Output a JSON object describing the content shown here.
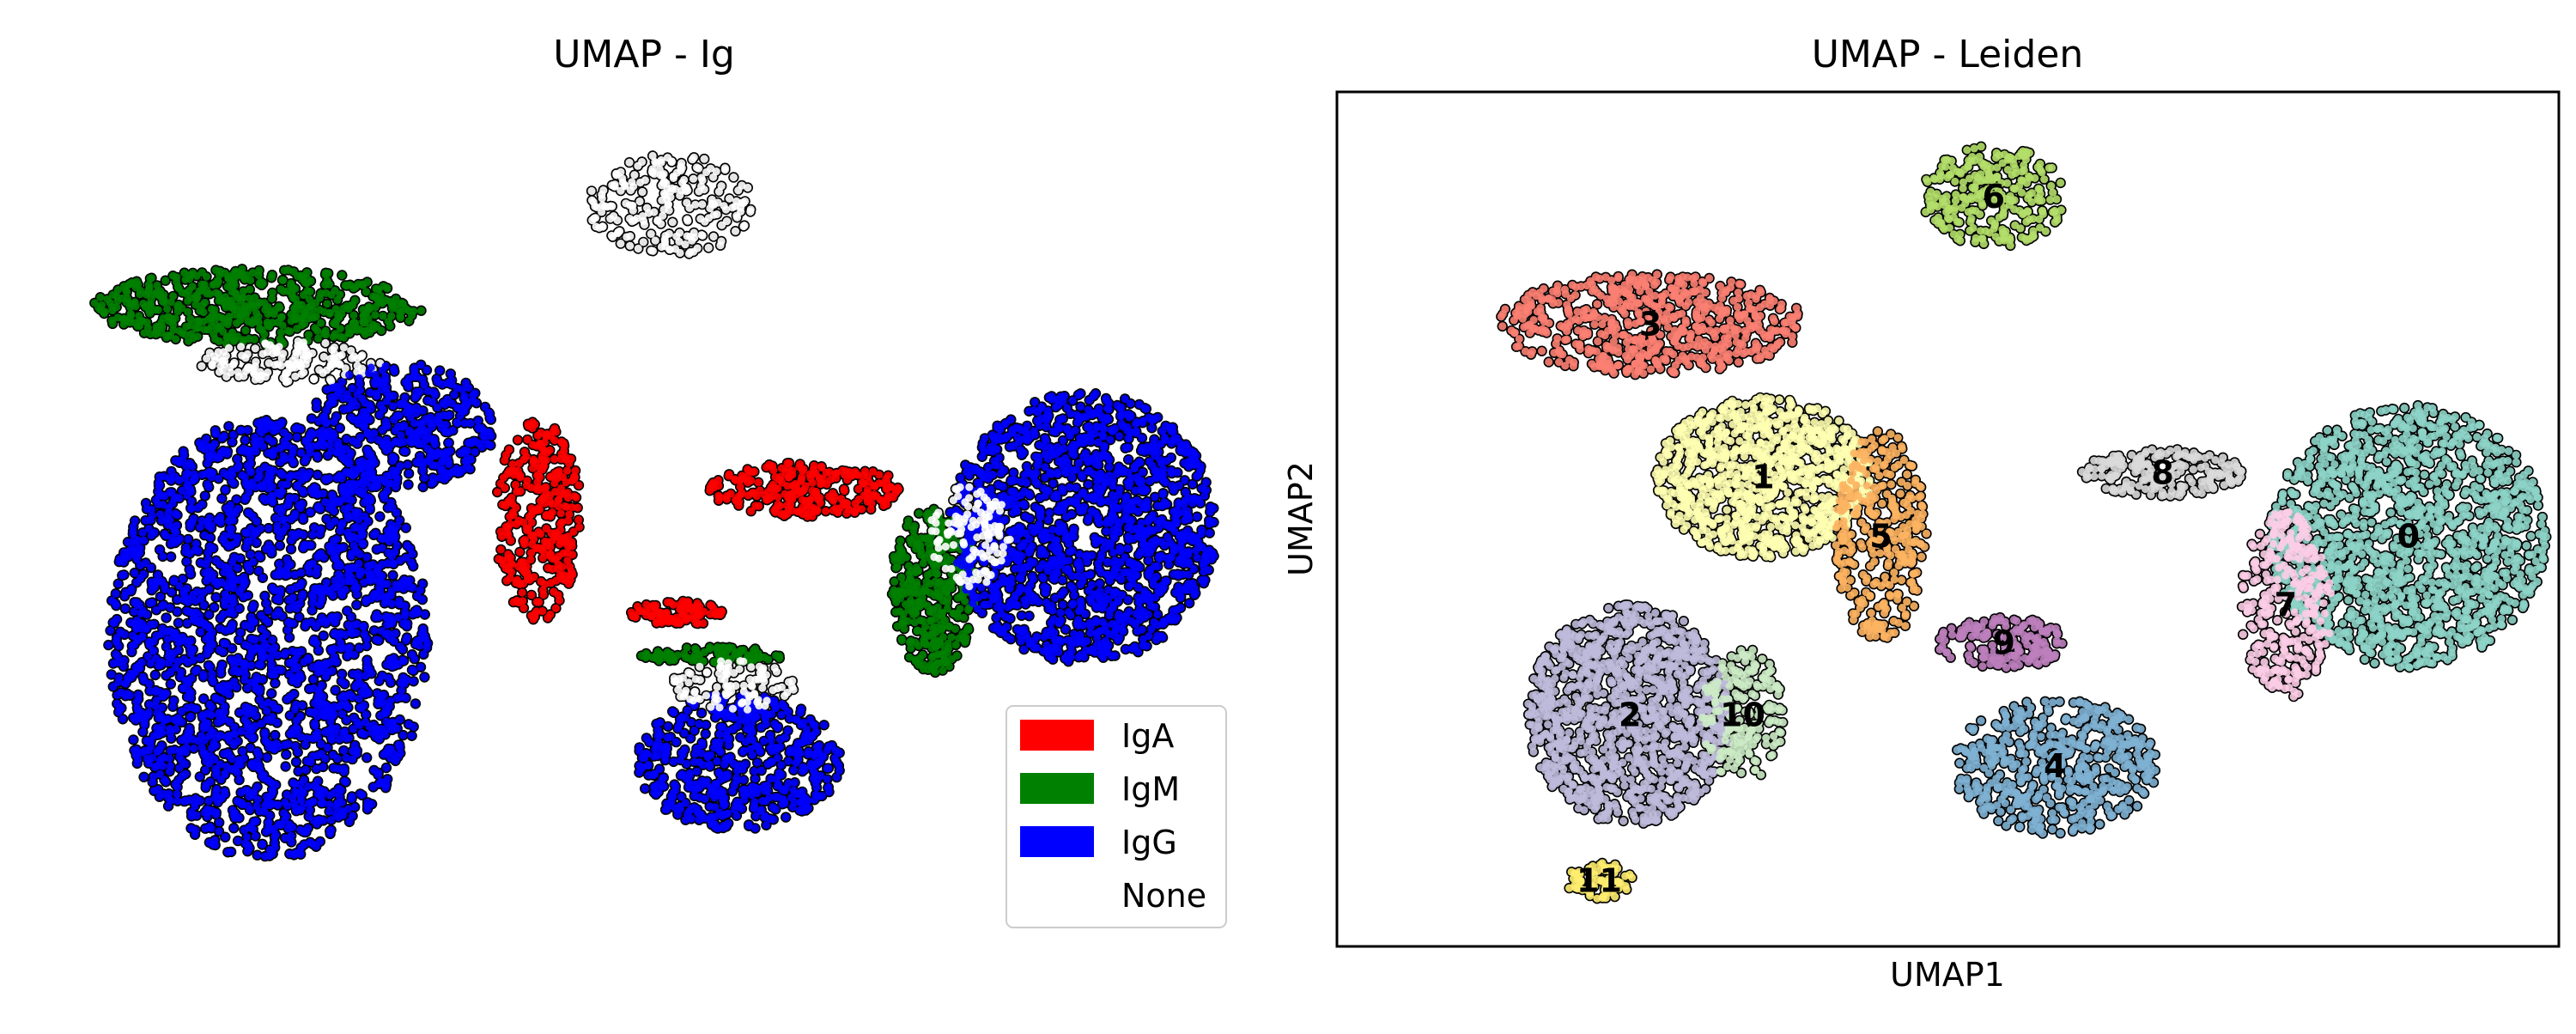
{
  "chart_data": [
    {
      "type": "scatter",
      "title": "UMAP - Ig",
      "legend_position": "bottom-right",
      "legend": [
        {
          "label": "IgA",
          "color": "#ff0000"
        },
        {
          "label": "IgM",
          "color": "#008000"
        },
        {
          "label": "IgG",
          "color": "#0000ff"
        },
        {
          "label": "None",
          "color": "#ffffff"
        }
      ],
      "point_outline": "#000000",
      "axis_frame": false,
      "clusters": [
        {
          "category": "IgM",
          "cx": -3.7,
          "cy": 3.9,
          "rx": 1.6,
          "ry": 0.45,
          "n": 520
        },
        {
          "category": "None",
          "cx": -3.4,
          "cy": 3.25,
          "rx": 0.9,
          "ry": 0.25,
          "n": 140
        },
        {
          "category": "IgG",
          "cx": -3.6,
          "cy": 0.0,
          "rx": 1.55,
          "ry": 2.6,
          "n": 2000
        },
        {
          "category": "IgG",
          "cx": -2.3,
          "cy": 2.5,
          "rx": 0.9,
          "ry": 0.75,
          "n": 380
        },
        {
          "category": "None",
          "cx": 0.3,
          "cy": 5.1,
          "rx": 0.8,
          "ry": 0.6,
          "n": 220
        },
        {
          "category": "IgA",
          "cx": -0.98,
          "cy": 1.4,
          "rx": 0.42,
          "ry": 1.2,
          "n": 300
        },
        {
          "category": "IgA",
          "cx": 1.6,
          "cy": 1.75,
          "rx": 0.95,
          "ry": 0.32,
          "n": 240
        },
        {
          "category": "IgA",
          "cx": 0.35,
          "cy": 0.3,
          "rx": 0.45,
          "ry": 0.15,
          "n": 90
        },
        {
          "category": "IgM",
          "cx": 0.7,
          "cy": -0.2,
          "rx": 0.7,
          "ry": 0.1,
          "n": 90
        },
        {
          "category": "IgG",
          "cx": 0.95,
          "cy": -1.45,
          "rx": 1.0,
          "ry": 0.8,
          "n": 480
        },
        {
          "category": "None",
          "cx": 0.9,
          "cy": -0.55,
          "rx": 0.6,
          "ry": 0.3,
          "n": 100
        },
        {
          "category": "IgM",
          "cx": 2.85,
          "cy": 0.6,
          "rx": 0.42,
          "ry": 1.0,
          "n": 340
        },
        {
          "category": "IgG",
          "cx": 4.3,
          "cy": 1.3,
          "rx": 1.3,
          "ry": 1.6,
          "n": 1300
        },
        {
          "category": "None",
          "cx": 3.2,
          "cy": 1.2,
          "rx": 0.4,
          "ry": 0.6,
          "n": 120
        }
      ]
    },
    {
      "type": "scatter",
      "title": "UMAP - Leiden",
      "xlabel": "UMAP1",
      "ylabel": "UMAP2",
      "axis_frame": true,
      "ticks": false,
      "point_outline": "#000000",
      "clusters": [
        {
          "label": "0",
          "color": "#8dd3c7",
          "cx": 4.4,
          "cy": 1.2,
          "rx": 1.35,
          "ry": 1.55,
          "n": 1400
        },
        {
          "label": "1",
          "color": "#ffffb3",
          "cx": -1.9,
          "cy": 1.9,
          "rx": 1.05,
          "ry": 0.95,
          "n": 950
        },
        {
          "label": "2",
          "color": "#bebada",
          "cx": -3.2,
          "cy": -0.9,
          "rx": 1.0,
          "ry": 1.3,
          "n": 1100
        },
        {
          "label": "3",
          "color": "#fb8072",
          "cx": -3.0,
          "cy": 3.7,
          "rx": 1.5,
          "ry": 0.6,
          "n": 600
        },
        {
          "label": "4",
          "color": "#80b1d3",
          "cx": 0.95,
          "cy": -1.5,
          "rx": 1.0,
          "ry": 0.8,
          "n": 500
        },
        {
          "label": "5",
          "color": "#fdb462",
          "cx": -0.75,
          "cy": 1.2,
          "rx": 0.45,
          "ry": 1.25,
          "n": 320
        },
        {
          "label": "6",
          "color": "#b3de69",
          "cx": 0.35,
          "cy": 5.2,
          "rx": 0.7,
          "ry": 0.6,
          "n": 260
        },
        {
          "label": "7",
          "color": "#fccde5",
          "cx": 3.2,
          "cy": 0.4,
          "rx": 0.45,
          "ry": 1.1,
          "n": 300
        },
        {
          "label": "8",
          "color": "#d9d9d9",
          "cx": 2.0,
          "cy": 1.95,
          "rx": 0.8,
          "ry": 0.28,
          "n": 200
        },
        {
          "label": "9",
          "color": "#bc80bd",
          "cx": 0.45,
          "cy": -0.05,
          "rx": 0.65,
          "ry": 0.3,
          "n": 160
        },
        {
          "label": "10",
          "color": "#ccebc5",
          "cx": -2.1,
          "cy": -0.9,
          "rx": 0.4,
          "ry": 0.8,
          "n": 180
        },
        {
          "label": "11",
          "color": "#ffed6f",
          "cx": -3.5,
          "cy": -2.85,
          "rx": 0.35,
          "ry": 0.22,
          "n": 70
        }
      ]
    }
  ]
}
